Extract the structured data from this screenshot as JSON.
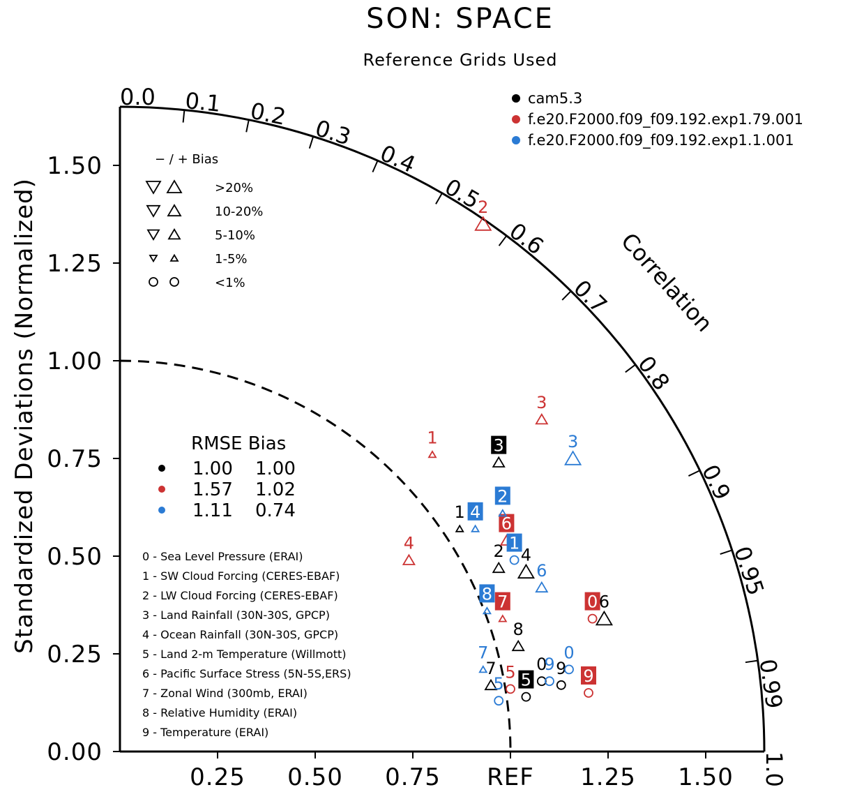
{
  "chart_data": {
    "type": "scatter",
    "title": "SON: SPACE",
    "subtitle": "Reference Grids Used",
    "ylabel": "Standardized Deviations (Normalized)",
    "correlation_label": "Correlation",
    "ref_label": "REF",
    "ylim": [
      0,
      1.65
    ],
    "y_ticks": [
      "0.00",
      "0.25",
      "0.50",
      "0.75",
      "1.00",
      "1.25",
      "1.50"
    ],
    "x_ticks": [
      "0.25",
      "0.50",
      "0.75",
      "REF",
      "1.25",
      "1.50"
    ],
    "corr_ticks": [
      {
        "label": "0.0",
        "r": 0.0
      },
      {
        "label": "0.1",
        "r": 0.1
      },
      {
        "label": "0.2",
        "r": 0.2
      },
      {
        "label": "0.3",
        "r": 0.3
      },
      {
        "label": "0.4",
        "r": 0.4
      },
      {
        "label": "0.5",
        "r": 0.5
      },
      {
        "label": "0.6",
        "r": 0.6
      },
      {
        "label": "0.7",
        "r": 0.7
      },
      {
        "label": "0.8",
        "r": 0.8
      },
      {
        "label": "0.9",
        "r": 0.9
      },
      {
        "label": "0.95",
        "r": 0.95
      },
      {
        "label": "0.99",
        "r": 0.99
      },
      {
        "label": "1.0",
        "r": 1.0
      }
    ],
    "series": [
      {
        "name": "cam5.3",
        "color": "#000000",
        "rmse": "1.00",
        "bias": "1.00",
        "points": [
          {
            "id": "0",
            "x": 1.08,
            "y": 0.18,
            "marker": "circle",
            "boxed": false
          },
          {
            "id": "1",
            "x": 0.87,
            "y": 0.57,
            "marker": "tri-up-small",
            "boxed": false
          },
          {
            "id": "2",
            "x": 0.97,
            "y": 0.47,
            "marker": "tri-up",
            "boxed": false
          },
          {
            "id": "3",
            "x": 0.97,
            "y": 0.74,
            "marker": "tri-up",
            "boxed": true
          },
          {
            "id": "4",
            "x": 1.04,
            "y": 0.46,
            "marker": "tri-up-large",
            "boxed": false
          },
          {
            "id": "5",
            "x": 1.04,
            "y": 0.14,
            "marker": "circle",
            "boxed": true
          },
          {
            "id": "6",
            "x": 1.24,
            "y": 0.34,
            "marker": "tri-up-large",
            "boxed": false
          },
          {
            "id": "7",
            "x": 0.95,
            "y": 0.17,
            "marker": "tri-up",
            "boxed": false
          },
          {
            "id": "8",
            "x": 1.02,
            "y": 0.27,
            "marker": "tri-up",
            "boxed": false
          },
          {
            "id": "9",
            "x": 1.13,
            "y": 0.17,
            "marker": "circle",
            "boxed": false
          }
        ]
      },
      {
        "name": "f.e20.F2000.f09_f09.192.exp1.79.001",
        "color": "#cc3333",
        "rmse": "1.57",
        "bias": "1.02",
        "points": [
          {
            "id": "0",
            "x": 1.21,
            "y": 0.34,
            "marker": "circle",
            "boxed": true
          },
          {
            "id": "1",
            "x": 0.8,
            "y": 0.76,
            "marker": "tri-up-small",
            "boxed": false
          },
          {
            "id": "2",
            "x": 0.93,
            "y": 1.35,
            "marker": "tri-up-large",
            "boxed": false
          },
          {
            "id": "3",
            "x": 1.08,
            "y": 0.85,
            "marker": "tri-up",
            "boxed": false
          },
          {
            "id": "4",
            "x": 0.74,
            "y": 0.49,
            "marker": "tri-up",
            "boxed": false
          },
          {
            "id": "5",
            "x": 1.0,
            "y": 0.16,
            "marker": "circle",
            "boxed": false
          },
          {
            "id": "6",
            "x": 0.99,
            "y": 0.54,
            "marker": "tri-up",
            "boxed": true
          },
          {
            "id": "7",
            "x": 0.98,
            "y": 0.34,
            "marker": "tri-up-small",
            "boxed": true
          },
          {
            "id": "9",
            "x": 1.2,
            "y": 0.15,
            "marker": "circle",
            "boxed": true
          }
        ]
      },
      {
        "name": "f.e20.F2000.f09_f09.192.exp1.1.001",
        "color": "#2b7bd4",
        "rmse": "1.11",
        "bias": "0.74",
        "points": [
          {
            "id": "0",
            "x": 1.15,
            "y": 0.21,
            "marker": "circle",
            "boxed": false
          },
          {
            "id": "1",
            "x": 1.01,
            "y": 0.49,
            "marker": "circle",
            "boxed": true
          },
          {
            "id": "2",
            "x": 0.98,
            "y": 0.61,
            "marker": "tri-up-small",
            "boxed": true
          },
          {
            "id": "3",
            "x": 1.16,
            "y": 0.75,
            "marker": "tri-up-large",
            "boxed": false
          },
          {
            "id": "4",
            "x": 0.91,
            "y": 0.57,
            "marker": "tri-up-small",
            "boxed": true
          },
          {
            "id": "5",
            "x": 0.97,
            "y": 0.13,
            "marker": "circle",
            "boxed": false
          },
          {
            "id": "6",
            "x": 1.08,
            "y": 0.42,
            "marker": "tri-up",
            "boxed": false
          },
          {
            "id": "7",
            "x": 0.93,
            "y": 0.21,
            "marker": "tri-up-small",
            "boxed": false
          },
          {
            "id": "8",
            "x": 0.94,
            "y": 0.36,
            "marker": "tri-up-small",
            "boxed": true
          },
          {
            "id": "9",
            "x": 1.1,
            "y": 0.18,
            "marker": "circle",
            "boxed": false
          }
        ]
      }
    ],
    "legend_placement": "top-right",
    "bias_legend": {
      "header": "−  /  +        Bias",
      "rows": [
        ">20%",
        "10-20%",
        "5-10%",
        "1-5%",
        "<1%"
      ]
    },
    "rmse_legend": {
      "header": "RMSE Bias"
    },
    "variables": [
      "0 - Sea Level Pressure (ERAI)",
      "1 - SW Cloud Forcing (CERES-EBAF)",
      "2 - LW Cloud Forcing (CERES-EBAF)",
      "3 - Land Rainfall (30N-30S, GPCP)",
      "4 - Ocean Rainfall (30N-30S, GPCP)",
      "5 - Land 2-m Temperature (Willmott)",
      "6 - Pacific Surface Stress (5N-5S,ERS)",
      "7 - Zonal Wind (300mb, ERAI)",
      "8 - Relative Humidity (ERAI)",
      "9 - Temperature (ERAI)"
    ]
  }
}
